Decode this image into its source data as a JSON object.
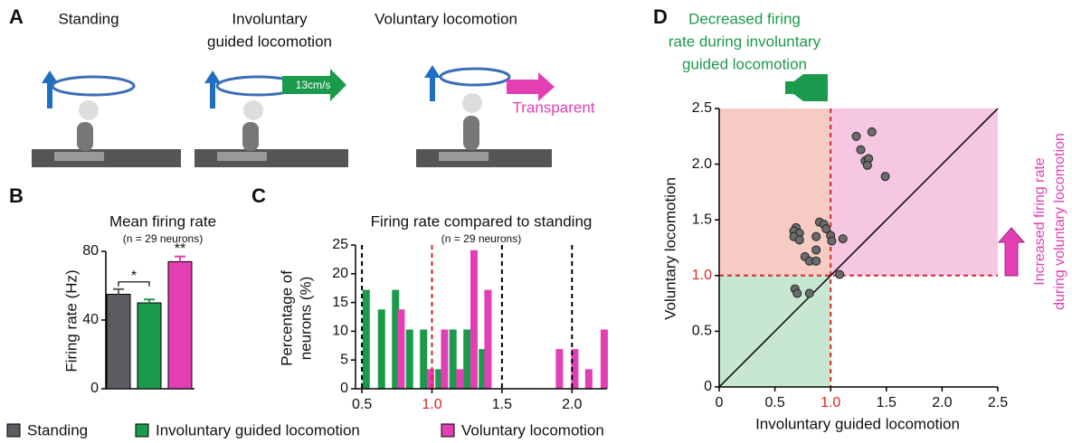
{
  "panel_labels": [
    "A",
    "B",
    "C",
    "D"
  ],
  "panel_a": {
    "standing": "Standing",
    "involuntary": [
      "Involuntary",
      "guided locomotion"
    ],
    "voluntary": "Voluntary locomotion",
    "speed_label": "13cm/s",
    "transparent_label": "Transparent"
  },
  "chart_data": [
    {
      "type": "bar",
      "title": "Mean firing rate",
      "subtitle": "(n = 29 neurons)",
      "ylabel": "Firing rate (Hz)",
      "series": [
        {
          "name": "Standing",
          "color": "#5d5b62",
          "values": [
            55
          ],
          "errors": [
            3
          ]
        },
        {
          "name": "Involuntary guided locomotion",
          "color": "#1c9a4c",
          "values": [
            50
          ],
          "errors": [
            2
          ]
        },
        {
          "name": "Voluntary locomotion",
          "color": "#e23fb4",
          "values": [
            74
          ],
          "errors": [
            3
          ]
        }
      ],
      "annotations": [
        "*",
        "**"
      ],
      "ylim": [
        0,
        80
      ],
      "yticks": [
        0,
        40,
        80
      ]
    },
    {
      "type": "column",
      "title": "Firing rate compared to standing",
      "subtitle": "(n = 29 neurons)",
      "ylabel": [
        "Percentage of",
        "neurons (%)"
      ],
      "series": [
        {
          "color": "#1c9a4c",
          "x": [
            0.53,
            0.64,
            0.74,
            0.84,
            0.94,
            1.05,
            1.15,
            1.25,
            1.36
          ],
          "values": [
            17.2,
            13.8,
            17.2,
            10.3,
            10.3,
            3.4,
            10.3,
            10.3,
            6.9
          ]
        },
        {
          "color": "#e23fb4",
          "x": [
            0.78,
            0.99,
            1.09,
            1.2,
            1.3,
            1.4,
            1.91,
            2.02,
            2.12,
            2.23
          ],
          "values": [
            13.8,
            3.4,
            10.3,
            3.4,
            24.1,
            17.2,
            6.9,
            6.9,
            3.4,
            10.3
          ]
        }
      ],
      "xlim": [
        0.48,
        2.25
      ],
      "xticks": [
        0.5,
        {
          "value": 1,
          "label": "1.0"
        },
        1.5,
        {
          "value": 2,
          "label": "2.0"
        }
      ],
      "ylim": [
        0,
        25
      ],
      "yticks": [
        0,
        5,
        10,
        15,
        20,
        25
      ],
      "ref_lines": [
        0.5,
        1,
        1.5,
        2
      ],
      "highlight_value": 1,
      "highlight_color": "#d62728"
    },
    {
      "type": "scatter",
      "xlabel": "Involuntary guided locomotion",
      "ylabel": "Voluntary locomotion",
      "color": "#6b6b6b",
      "x": [
        1.23,
        1.37,
        1.27,
        1.31,
        1.34,
        1.33,
        1.49,
        0.69,
        0.67,
        0.72,
        0.67,
        0.72,
        0.87,
        0.9,
        0.94,
        0.96,
        1.0,
        1.01,
        1.11,
        0.87,
        0.77,
        0.81,
        0.87,
        1.08,
        0.68,
        0.7,
        0.81
      ],
      "y": [
        2.25,
        2.29,
        2.13,
        2.03,
        2.05,
        1.99,
        1.89,
        1.43,
        1.4,
        1.38,
        1.35,
        1.32,
        1.35,
        1.48,
        1.46,
        1.42,
        1.36,
        1.31,
        1.33,
        1.23,
        1.17,
        1.13,
        1.13,
        1.01,
        0.88,
        0.84,
        0.84
      ],
      "xlim": [
        0,
        2.5
      ],
      "ylim": [
        0,
        2.5
      ],
      "xticks": [
        0,
        0.5,
        {
          "value": 1,
          "label": "1.0"
        },
        1.5,
        {
          "value": 2,
          "label": "2.0"
        },
        2.5
      ],
      "yticks": [
        0,
        0.5,
        {
          "value": 1,
          "label": "1.0"
        },
        1.5,
        {
          "value": 2,
          "label": "2.0"
        },
        2.5
      ],
      "threshold": 1,
      "highlight_color": "#d62728",
      "diagonal": true,
      "region_colors": {
        "upper_left": "#f5cbc4",
        "upper_right": "#f5c7e2",
        "lower_left": "#c8e7d3"
      },
      "annotations": [
        {
          "lines": [
            "Decreased firing",
            "rate during involuntary",
            "guided locomotion"
          ],
          "color": "#1c9a4c"
        },
        {
          "lines": [
            "Increased firing rate",
            "during voluntary locomotion"
          ],
          "color": "#e23fb4"
        }
      ]
    }
  ]
}
